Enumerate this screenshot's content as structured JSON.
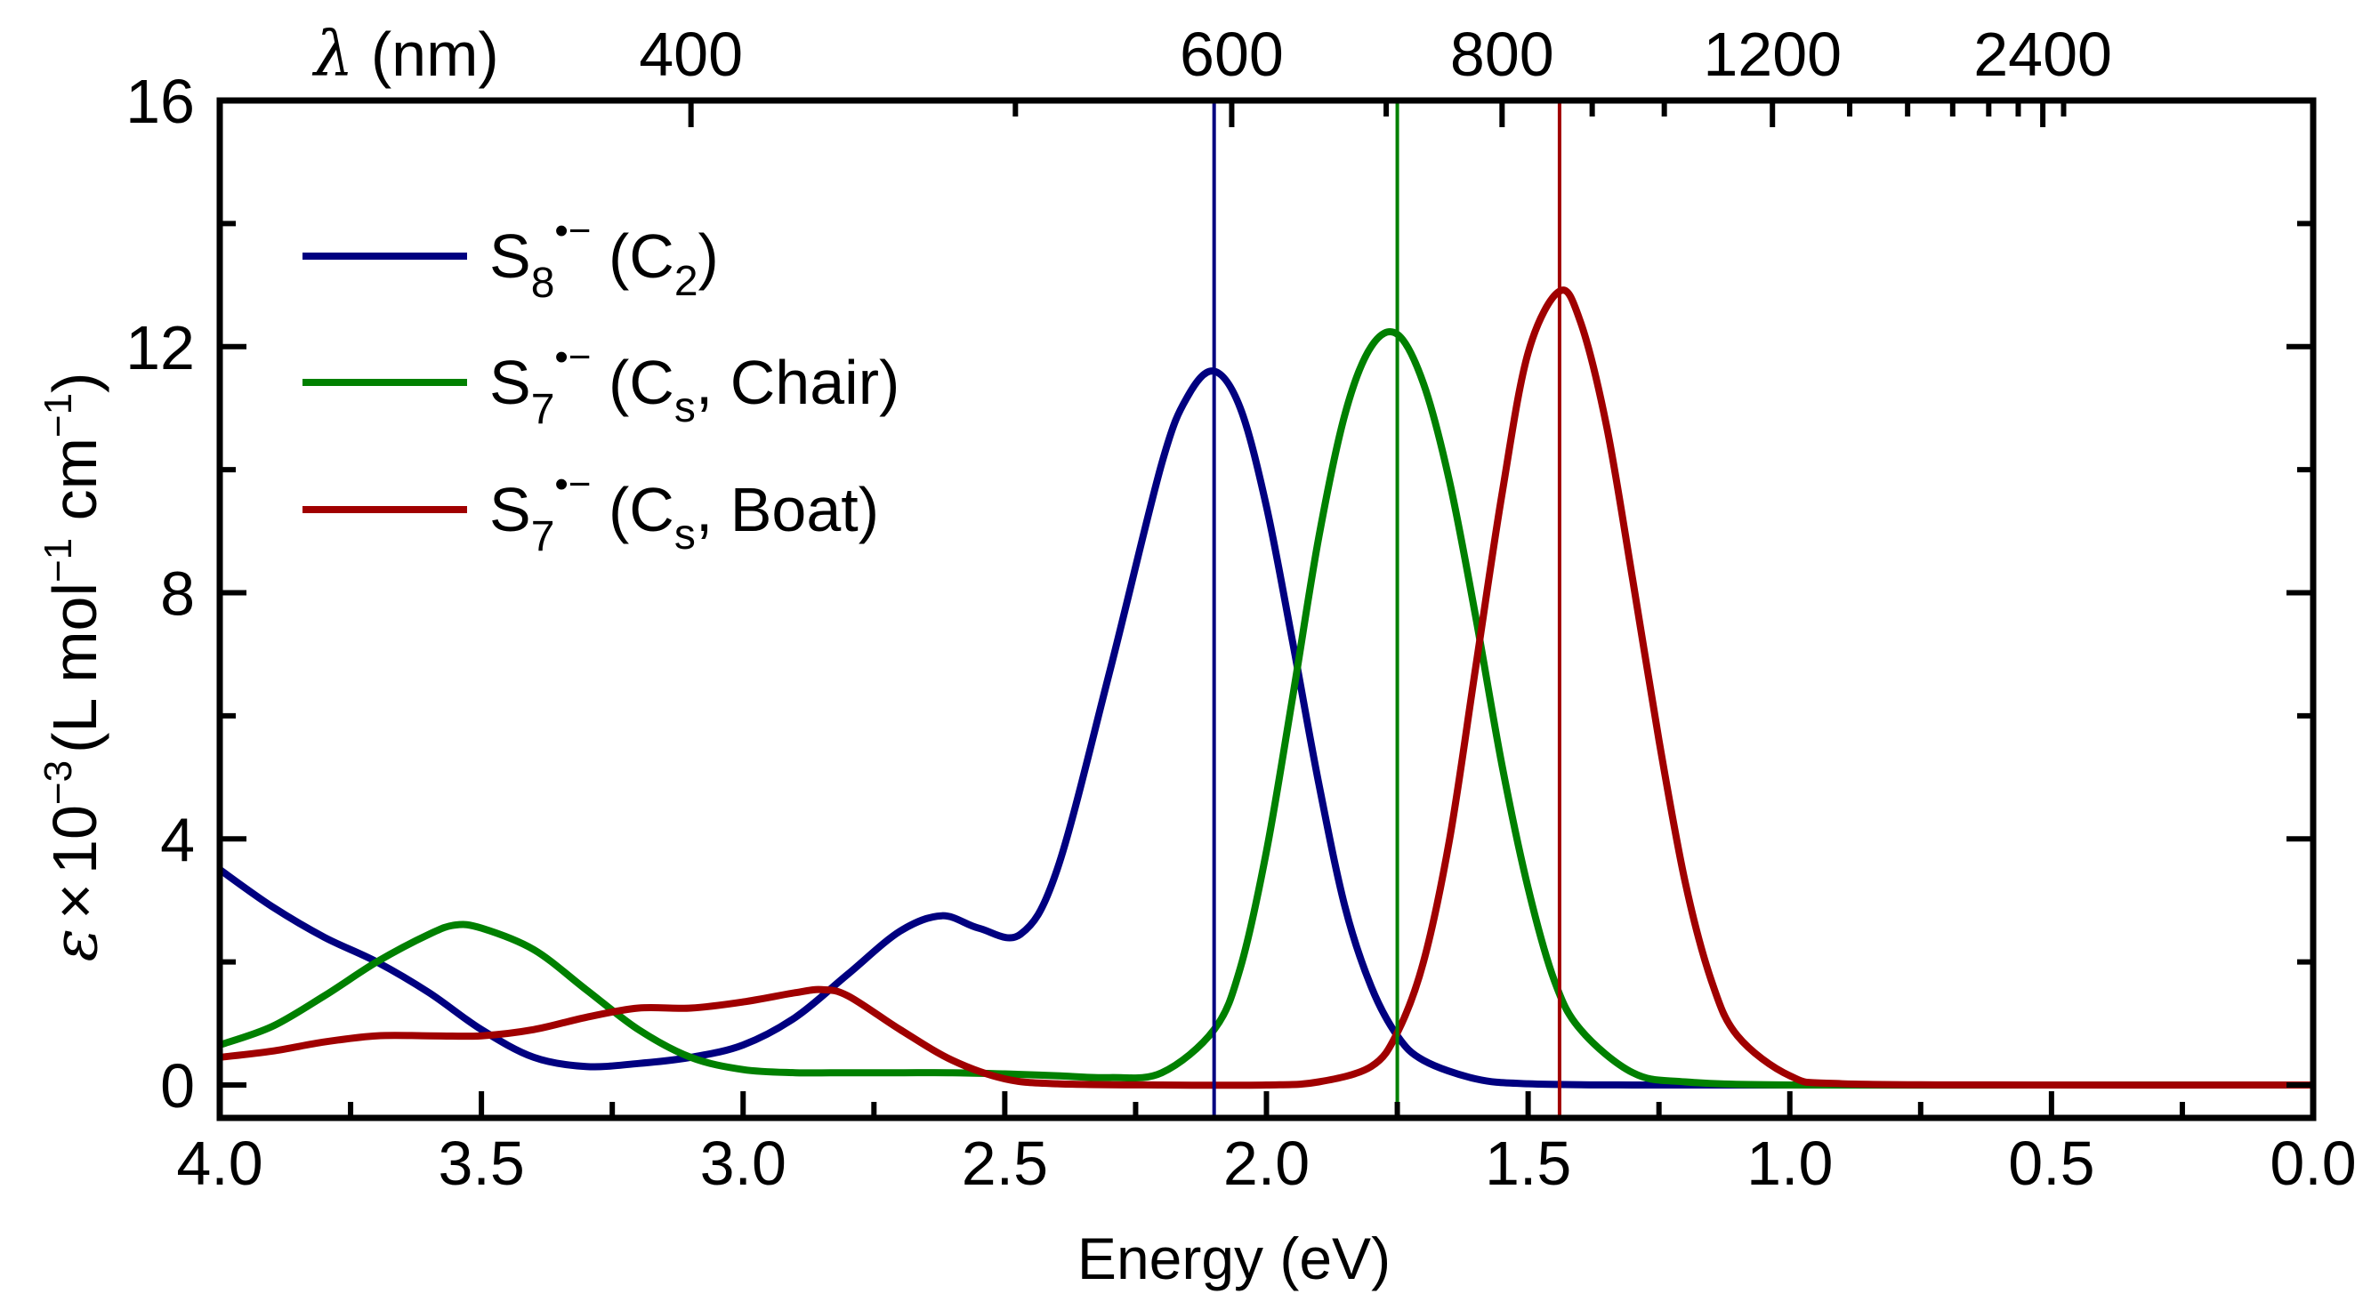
{
  "chart_data": {
    "type": "line",
    "xlabel": "Energy (eV)",
    "ylabel": {
      "symbol": "ε",
      "times": "×",
      "base": "10",
      "exponent": "−3",
      "units_open": "(L mol",
      "units_exp1": "−1",
      "units_mid": " cm",
      "units_exp2": "−1",
      "units_close": ")"
    },
    "xlim": [
      4.0,
      0.0
    ],
    "ylim": [
      0,
      16
    ],
    "x_ticks": [
      "4.0",
      "3.5",
      "3.0",
      "2.5",
      "2.0",
      "1.5",
      "1.0",
      "0.5",
      "0.0"
    ],
    "y_ticks": [
      "0",
      "4",
      "8",
      "12",
      "16"
    ],
    "x_tick_values": [
      4.0,
      3.5,
      3.0,
      2.5,
      2.0,
      1.5,
      1.0,
      0.5,
      0.0
    ],
    "y_tick_values": [
      0,
      4,
      8,
      12,
      16
    ],
    "top_axis": {
      "title_symbol": "λ",
      "title_unit": " (nm)",
      "labels": [
        {
          "text": "400",
          "nm": 400
        },
        {
          "text": "600",
          "nm": 600
        },
        {
          "text": "800",
          "nm": 800
        },
        {
          "text": "1200",
          "nm": 1200
        },
        {
          "text": "2400",
          "nm": 2400
        }
      ],
      "minor_tick_nm": [
        500,
        700,
        900,
        1000,
        1400,
        1600,
        1800,
        2000,
        2200,
        2600
      ]
    },
    "legend": {
      "position": "top-left",
      "entries": [
        {
          "main": "S",
          "sub": "8",
          "sup": "•−",
          "paren_open": " (C",
          "sym_sub": "2",
          "paren_close": ")"
        },
        {
          "main": "S",
          "sub": "7",
          "sup": "•−",
          "paren_open": " (C",
          "sym_sub": "s",
          "paren_close": ", Chair)"
        },
        {
          "main": "S",
          "sub": "7",
          "sup": "•−",
          "paren_open": " (C",
          "sym_sub": "s",
          "paren_close": ", Boat)"
        }
      ]
    },
    "series": [
      {
        "name": "S8•− (C2)",
        "color": "#000080",
        "peak_line_x": 2.1,
        "x": [
          4.0,
          3.9,
          3.8,
          3.7,
          3.6,
          3.5,
          3.4,
          3.3,
          3.2,
          3.1,
          3.0,
          2.9,
          2.8,
          2.7,
          2.62,
          2.55,
          2.47,
          2.4,
          2.3,
          2.2,
          2.15,
          2.1,
          2.05,
          2.0,
          1.95,
          1.9,
          1.85,
          1.8,
          1.75,
          1.7,
          1.6,
          1.5,
          1.3,
          1.0,
          0.5,
          0.0
        ],
        "y": [
          3.5,
          2.9,
          2.4,
          2.0,
          1.5,
          0.9,
          0.45,
          0.3,
          0.35,
          0.45,
          0.65,
          1.1,
          1.8,
          2.5,
          2.75,
          2.55,
          2.45,
          3.5,
          6.7,
          10.1,
          11.2,
          11.6,
          11.0,
          9.4,
          7.2,
          4.9,
          2.9,
          1.6,
          0.8,
          0.4,
          0.1,
          0.02,
          0.0,
          0.0,
          0.0,
          0.0
        ]
      },
      {
        "name": "S7•− (Cs, Chair)",
        "color": "#008000",
        "peak_line_x": 1.75,
        "x": [
          4.0,
          3.9,
          3.8,
          3.7,
          3.6,
          3.55,
          3.5,
          3.4,
          3.3,
          3.2,
          3.1,
          3.0,
          2.9,
          2.8,
          2.7,
          2.6,
          2.5,
          2.4,
          2.3,
          2.2,
          2.1,
          2.05,
          2.0,
          1.95,
          1.9,
          1.85,
          1.8,
          1.75,
          1.7,
          1.65,
          1.6,
          1.55,
          1.5,
          1.45,
          1.4,
          1.3,
          1.2,
          1.0,
          0.5,
          0.0
        ],
        "y": [
          0.65,
          0.95,
          1.45,
          2.0,
          2.45,
          2.6,
          2.55,
          2.2,
          1.55,
          0.9,
          0.45,
          0.25,
          0.2,
          0.2,
          0.2,
          0.2,
          0.18,
          0.15,
          0.12,
          0.2,
          0.9,
          1.9,
          3.8,
          6.3,
          8.9,
          10.9,
          12.0,
          12.2,
          11.4,
          9.8,
          7.6,
          5.2,
          3.2,
          1.7,
          0.9,
          0.2,
          0.05,
          0.0,
          0.0,
          0.0
        ]
      },
      {
        "name": "S7•− (Cs, Boat)",
        "color": "#A00000",
        "peak_line_x": 1.44,
        "x": [
          4.0,
          3.9,
          3.8,
          3.7,
          3.6,
          3.5,
          3.4,
          3.3,
          3.2,
          3.1,
          3.0,
          2.9,
          2.85,
          2.8,
          2.7,
          2.6,
          2.5,
          2.4,
          2.2,
          2.0,
          1.9,
          1.8,
          1.75,
          1.7,
          1.65,
          1.6,
          1.55,
          1.5,
          1.44,
          1.4,
          1.35,
          1.3,
          1.25,
          1.2,
          1.15,
          1.1,
          1.0,
          0.9,
          0.5,
          0.0
        ],
        "y": [
          0.45,
          0.55,
          0.7,
          0.8,
          0.8,
          0.8,
          0.9,
          1.1,
          1.25,
          1.25,
          1.35,
          1.5,
          1.55,
          1.45,
          0.9,
          0.4,
          0.1,
          0.02,
          0.0,
          0.0,
          0.05,
          0.3,
          0.85,
          2.0,
          4.0,
          6.8,
          9.6,
          11.9,
          12.9,
          12.4,
          10.7,
          8.2,
          5.6,
          3.3,
          1.7,
          0.8,
          0.15,
          0.02,
          0.0,
          0.0
        ]
      }
    ]
  }
}
